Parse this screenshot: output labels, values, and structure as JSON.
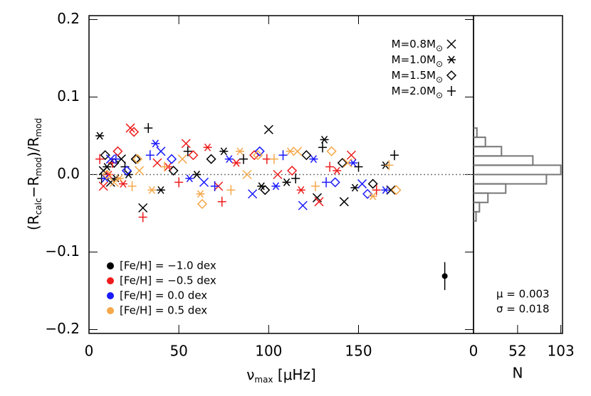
{
  "chart_data": {
    "type": "scatter",
    "xlabel": [
      "ν",
      "max",
      " [μHz]"
    ],
    "ylabel": [
      "(R",
      "calc",
      "−R",
      "mod",
      ")/R",
      "mod"
    ],
    "xlim": [
      0,
      214
    ],
    "xticks": [
      0,
      50,
      100,
      150
    ],
    "ylim": [
      -0.205,
      0.205
    ],
    "yticks": [
      {
        "value": -0.2,
        "label": "−0.2"
      },
      {
        "value": -0.1,
        "label": "−0.1"
      },
      {
        "value": 0,
        "label": "0.0"
      },
      {
        "value": 0.1,
        "label": "0.1"
      },
      {
        "value": 0.2,
        "label": "0.2"
      }
    ],
    "reference_line": 0,
    "mass_legend": [
      {
        "label": [
          "M=0.8M",
          "⊙"
        ],
        "marker": "x"
      },
      {
        "label": [
          "M=1.0M",
          "⊙"
        ],
        "marker": "*"
      },
      {
        "label": [
          "M=1.5M",
          "⊙"
        ],
        "marker": "d"
      },
      {
        "label": [
          "M=2.0M",
          "⊙"
        ],
        "marker": "+"
      }
    ],
    "feh_legend": [
      {
        "label": "[Fe/H] = −1.0 dex",
        "color": "#000000"
      },
      {
        "label": "[Fe/H] = −0.5 dex",
        "color": "#ee1c1c"
      },
      {
        "label": "[Fe/H] = 0.0 dex",
        "color": "#1a1aff"
      },
      {
        "label": "[Fe/H] = 0.5 dex",
        "color": "#f5a84a"
      }
    ],
    "series": [
      {
        "color": "#000000",
        "marker": "x",
        "x": [
          8,
          12,
          18,
          30,
          100,
          127,
          142,
          168
        ],
        "values": [
          0.005,
          -0.01,
          0.02,
          -0.043,
          0.058,
          -0.03,
          -0.035,
          -0.02
        ]
      },
      {
        "color": "#000000",
        "marker": "*",
        "x": [
          6,
          10,
          15,
          22,
          40,
          60,
          75,
          96,
          110,
          131,
          148,
          165
        ],
        "values": [
          0.05,
          0.01,
          -0.005,
          0.0,
          -0.02,
          0.0,
          0.03,
          -0.015,
          -0.01,
          0.045,
          -0.017,
          0.012
        ]
      },
      {
        "color": "#000000",
        "marker": "d",
        "x": [
          9,
          14,
          26,
          47,
          68,
          98,
          121,
          141,
          158
        ],
        "values": [
          0.025,
          0.015,
          0.02,
          0.005,
          0.02,
          -0.02,
          0.025,
          0.015,
          -0.012
        ]
      },
      {
        "color": "#000000",
        "marker": "+",
        "x": [
          7,
          20,
          33,
          55,
          86,
          115,
          130,
          150,
          170
        ],
        "values": [
          -0.005,
          0.01,
          0.06,
          0.03,
          0.02,
          -0.005,
          0.035,
          0.01,
          0.025
        ]
      },
      {
        "color": "#ee1c1c",
        "marker": "x",
        "x": [
          8,
          23,
          38,
          54,
          72,
          105,
          128,
          146
        ],
        "values": [
          -0.015,
          0.06,
          0.015,
          0.04,
          -0.015,
          0.0,
          -0.035,
          0.025
        ]
      },
      {
        "color": "#ee1c1c",
        "marker": "*",
        "x": [
          11,
          19,
          44,
          66,
          82,
          118,
          138
        ],
        "values": [
          0.0,
          -0.012,
          0.01,
          0.035,
          0.015,
          -0.02,
          0.005
        ]
      },
      {
        "color": "#ee1c1c",
        "marker": "d",
        "x": [
          16,
          25,
          58,
          92,
          113
        ],
        "values": [
          0.03,
          0.055,
          0.025,
          0.025,
          0.005
        ]
      },
      {
        "color": "#ee1c1c",
        "marker": "+",
        "x": [
          6,
          13,
          30,
          50,
          74,
          99,
          134,
          160
        ],
        "values": [
          0.02,
          0.015,
          -0.055,
          -0.01,
          -0.035,
          0.02,
          0.01,
          -0.02
        ]
      },
      {
        "color": "#1a1aff",
        "marker": "x",
        "x": [
          12,
          40,
          64,
          91,
          119,
          152
        ],
        "values": [
          0.02,
          0.03,
          -0.01,
          -0.025,
          -0.04,
          -0.012
        ]
      },
      {
        "color": "#1a1aff",
        "marker": "*",
        "x": [
          9,
          37,
          56,
          78,
          104,
          125,
          147,
          165
        ],
        "values": [
          -0.005,
          0.04,
          -0.005,
          0.02,
          -0.015,
          0.02,
          0.015,
          -0.02
        ]
      },
      {
        "color": "#1a1aff",
        "marker": "d",
        "x": [
          21,
          46,
          95,
          137,
          155
        ],
        "values": [
          0.005,
          0.02,
          0.03,
          -0.01,
          -0.025
        ]
      },
      {
        "color": "#1a1aff",
        "marker": "+",
        "x": [
          15,
          34,
          70,
          108,
          132
        ],
        "values": [
          0.02,
          0.025,
          -0.015,
          0.025,
          -0.01
        ]
      },
      {
        "color": "#f5a84a",
        "marker": "x",
        "x": [
          14,
          28,
          52,
          88,
          116,
          144
        ],
        "values": [
          -0.01,
          0.005,
          0.02,
          0.0,
          0.03,
          0.015
        ]
      },
      {
        "color": "#f5a84a",
        "marker": "*",
        "x": [
          17,
          35,
          62,
          84,
          112,
          158
        ],
        "values": [
          -0.005,
          -0.02,
          -0.025,
          0.03,
          0.03,
          -0.028
        ]
      },
      {
        "color": "#f5a84a",
        "marker": "d",
        "x": [
          10,
          27,
          63,
          94,
          135,
          171
        ],
        "values": [
          0.0,
          0.02,
          -0.038,
          0.025,
          0.03,
          -0.02
        ]
      },
      {
        "color": "#f5a84a",
        "marker": "+",
        "x": [
          24,
          42,
          79,
          103,
          126,
          167
        ],
        "values": [
          -0.015,
          0.01,
          -0.02,
          0.02,
          -0.015,
          0.012
        ]
      }
    ],
    "error_bar": {
      "x": 198,
      "value": -0.131,
      "error": 0.018
    },
    "histogram": {
      "bins": [
        -0.06,
        -0.048,
        -0.036,
        -0.024,
        -0.012,
        0,
        0.012,
        0.024,
        0.036,
        0.048,
        0.06
      ],
      "counts": [
        3,
        7,
        17,
        38,
        86,
        103,
        70,
        33,
        14,
        4
      ],
      "xlim": [
        0,
        105
      ],
      "xticks": [
        0,
        52,
        103
      ],
      "xlabel": "N",
      "color": "#777777"
    },
    "stats": [
      "μ = 0.003",
      "σ = 0.018"
    ]
  }
}
